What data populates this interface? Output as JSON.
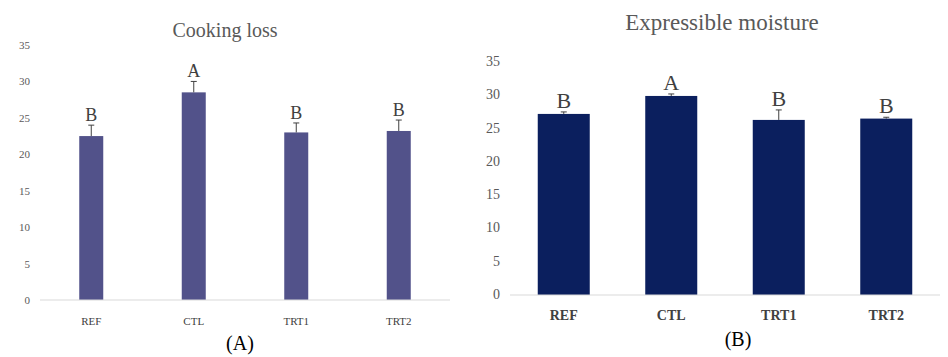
{
  "chart_data": [
    {
      "type": "bar",
      "title": "Cooking loss",
      "caption": "(A)",
      "categories": [
        "REF",
        "CTL",
        "TRT1",
        "TRT2"
      ],
      "values": [
        22.5,
        28.5,
        23,
        23.2
      ],
      "errors": [
        1.5,
        1.5,
        1.3,
        1.5
      ],
      "letters": [
        "B",
        "A",
        "B",
        "B"
      ],
      "color": "#52528a",
      "ylim": [
        0,
        35
      ],
      "yticks": [
        0,
        5,
        10,
        15,
        20,
        25,
        30,
        35
      ],
      "grid": false
    },
    {
      "type": "bar",
      "title": "Expressible moisture",
      "caption": "(B)",
      "categories": [
        "REF",
        "CTL",
        "TRT1",
        "TRT2"
      ],
      "values": [
        27.2,
        29.9,
        26.3,
        26.5
      ],
      "errors": [
        0.3,
        0.3,
        1.5,
        0.2
      ],
      "letters": [
        "B",
        "A",
        "B",
        "B"
      ],
      "color": "#0b1f5e",
      "ylim": [
        0,
        35
      ],
      "yticks": [
        0,
        5,
        10,
        15,
        20,
        25,
        30,
        35
      ],
      "grid": false
    }
  ]
}
